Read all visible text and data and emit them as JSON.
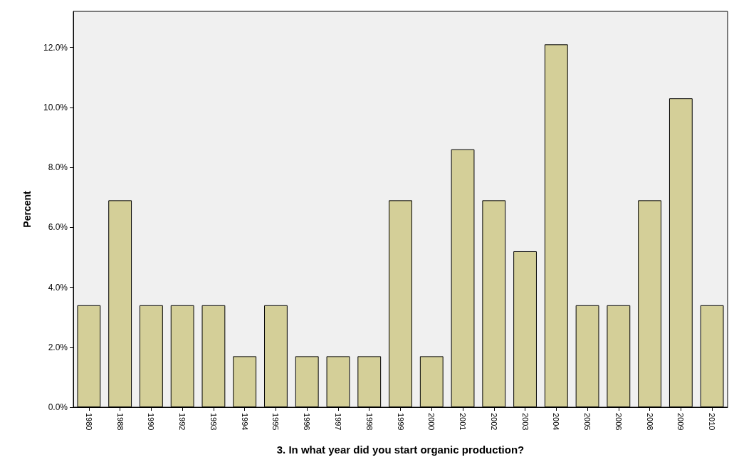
{
  "chart_data": {
    "type": "bar",
    "xlabel": "3. In what year did you start organic production?",
    "ylabel": "Percent",
    "categories": [
      "1980",
      "1988",
      "1990",
      "1992",
      "1993",
      "1994",
      "1995",
      "1996",
      "1997",
      "1998",
      "1999",
      "2000",
      "2001",
      "2002",
      "2003",
      "2004",
      "2005",
      "2006",
      "2008",
      "2009",
      "2010"
    ],
    "values": [
      3.4,
      6.9,
      3.4,
      3.4,
      3.4,
      1.7,
      3.4,
      1.7,
      1.7,
      1.7,
      6.9,
      1.7,
      8.6,
      6.9,
      5.2,
      12.1,
      3.4,
      3.4,
      6.9,
      10.3,
      3.4
    ],
    "color": "#d4cf98",
    "ylim": [
      0,
      13.2
    ],
    "yticks": [
      {
        "value": 0,
        "label": "0.0%"
      },
      {
        "value": 2,
        "label": "2.0%"
      },
      {
        "value": 4,
        "label": "4.0%"
      },
      {
        "value": 6,
        "label": "6.0%"
      },
      {
        "value": 8,
        "label": "8.0%"
      },
      {
        "value": 10,
        "label": "10.0%"
      },
      {
        "value": 12,
        "label": "12.0%"
      }
    ],
    "grid": false
  }
}
